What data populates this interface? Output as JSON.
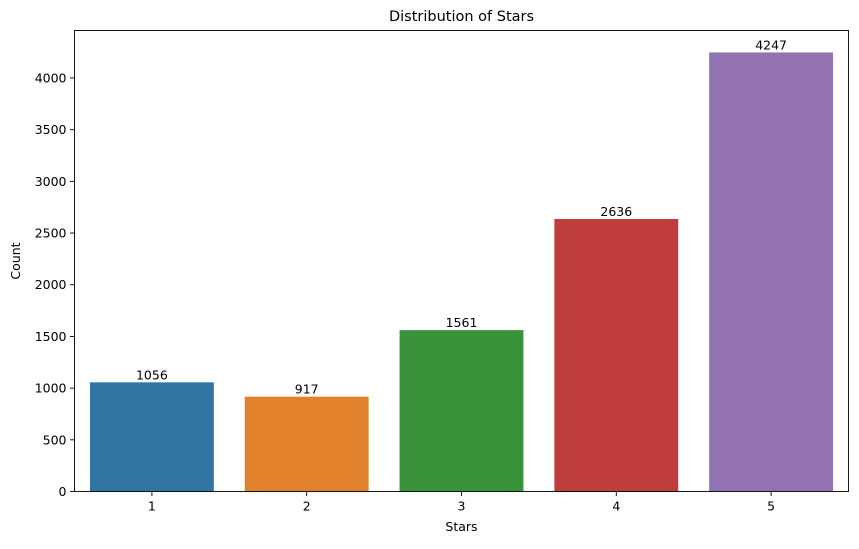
{
  "chart_data": {
    "type": "bar",
    "title": "Distribution of Stars",
    "xlabel": "Stars",
    "ylabel": "Count",
    "categories": [
      "1",
      "2",
      "3",
      "4",
      "5"
    ],
    "values": [
      1056,
      917,
      1561,
      2636,
      4247
    ],
    "data_labels": [
      "1056",
      "917",
      "1561",
      "2636",
      "4247"
    ],
    "ylim": [
      0,
      4459.35
    ],
    "yticks": [
      0,
      500,
      1000,
      1500,
      2000,
      2500,
      3000,
      3500,
      4000
    ],
    "ytick_labels": [
      "0",
      "500",
      "1000",
      "1500",
      "2000",
      "2500",
      "3000",
      "3500",
      "4000"
    ],
    "colors": [
      "#3274a1",
      "#e1812c",
      "#3a923a",
      "#c03d3e",
      "#9372b2"
    ],
    "grid": false,
    "legend": false
  }
}
